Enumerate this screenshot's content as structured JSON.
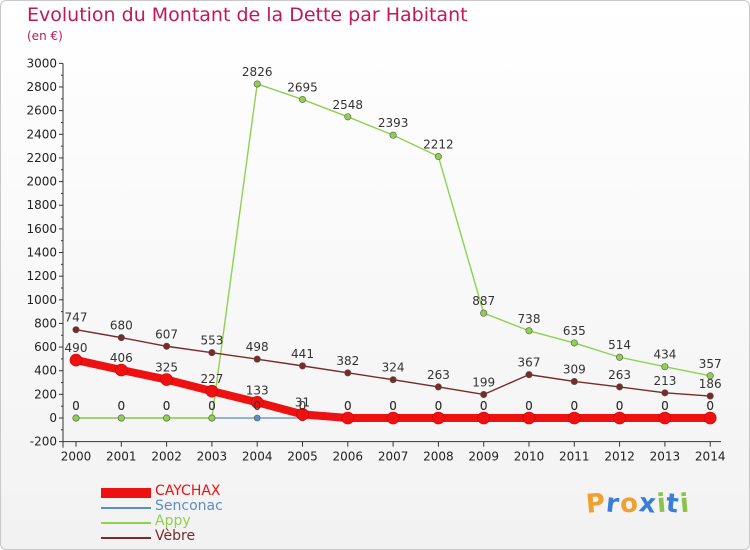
{
  "header": {
    "title": "Evolution du Montant de la Dette par Habitant",
    "unit": "(en €)"
  },
  "chart_data": {
    "type": "line",
    "title": "Evolution du Montant de la Dette par Habitant",
    "ylabel": "(en €)",
    "ylim": [
      -200,
      3000
    ],
    "ytick_step": 200,
    "grid": false,
    "legend_position": "bottom-left",
    "x": [
      "2000",
      "2001",
      "2002",
      "2003",
      "2004",
      "2005",
      "2006",
      "2007",
      "2008",
      "2009",
      "2010",
      "2011",
      "2012",
      "2013",
      "2014"
    ],
    "series": [
      {
        "name": "Senconac",
        "color": "#5b8ec4",
        "values": [
          0,
          0,
          0,
          0,
          0,
          0,
          0,
          0,
          0,
          0,
          0,
          0,
          0,
          0,
          0
        ],
        "labels": [
          "0",
          "0",
          "0",
          "0",
          "0",
          "0",
          "0",
          "0",
          "0",
          "0",
          "0",
          "0",
          "0",
          "0",
          "0"
        ]
      },
      {
        "name": "Appy",
        "color": "#8fd14f",
        "values": [
          0,
          0,
          0,
          0,
          2826,
          2695,
          2548,
          2393,
          2212,
          887,
          738,
          635,
          514,
          434,
          357
        ],
        "labels": [
          "0",
          "0",
          "0",
          "0",
          "2826",
          "2695",
          "2548",
          "2393",
          "2212",
          "887",
          "738",
          "635",
          "514",
          "434",
          "357"
        ]
      },
      {
        "name": "Vèbre",
        "color": "#7a2a2a",
        "values": [
          747,
          680,
          607,
          553,
          498,
          441,
          382,
          324,
          263,
          199,
          367,
          309,
          263,
          213,
          186
        ],
        "labels": [
          "747",
          "680",
          "607",
          "553",
          "498",
          "441",
          "382",
          "324",
          "263",
          "199",
          "367",
          "309",
          "263",
          "213",
          "186"
        ]
      },
      {
        "name": "CAYCHAX",
        "color": "#ee1111",
        "values": [
          490,
          406,
          325,
          227,
          133,
          31,
          0,
          0,
          0,
          0,
          0,
          0,
          0,
          0,
          0
        ],
        "labels": [
          "490",
          "406",
          "325",
          "227",
          "133",
          "31",
          "0",
          "0",
          "0",
          "0",
          "0",
          "0",
          "0",
          "0",
          "0"
        ]
      }
    ]
  },
  "legend": {
    "items": [
      {
        "name": "CAYCHAX",
        "color": "#ee1111",
        "text_color": "#ee1111"
      },
      {
        "name": "Senconac",
        "color": "#5b8ec4",
        "text_color": "#5b8ec4"
      },
      {
        "name": "Appy",
        "color": "#8fd14f",
        "text_color": "#8fd14f"
      },
      {
        "name": "Vèbre",
        "color": "#7a2a2a",
        "text_color": "#7a2a2a"
      }
    ]
  },
  "logo": {
    "letters": [
      "P",
      "r",
      "o",
      "x",
      "i",
      "t",
      "i"
    ],
    "colors": [
      "#f0a030",
      "#3a7fd5",
      "#f0a030",
      "#3a7fd5",
      "#8bc34a",
      "#3a7fd5",
      "#8bc34a"
    ]
  }
}
